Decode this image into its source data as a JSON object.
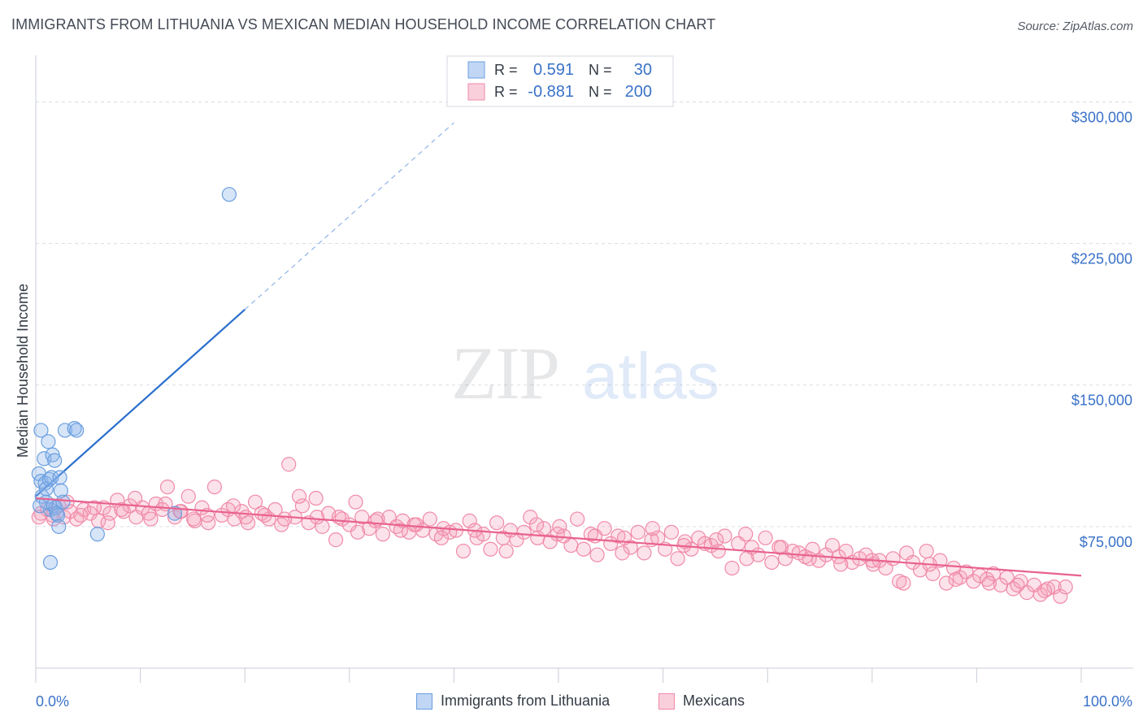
{
  "title": "IMMIGRANTS FROM LITHUANIA VS MEXICAN MEDIAN HOUSEHOLD INCOME CORRELATION CHART",
  "source": "Source: ZipAtlas.com",
  "watermark": {
    "zip": "ZIP",
    "atlas": "atlas"
  },
  "colors": {
    "blue": "#6a9fe0",
    "blue_fill": "rgba(140,180,235,0.35)",
    "blue_line": "#2a6fcc",
    "pink": "#f08aa8",
    "pink_fill": "rgba(245,160,185,0.30)",
    "pink_line": "#e8628f",
    "axis_label": "#3a72c8",
    "grid": "#d8dde5"
  },
  "legend_top": {
    "rows": [
      {
        "r_label": "R =",
        "r_value": "0.591",
        "n_label": "N =",
        "n_value": "30",
        "color": "blue"
      },
      {
        "r_label": "R =",
        "r_value": "-0.881",
        "n_label": "N =",
        "n_value": "200",
        "color": "pink"
      }
    ]
  },
  "legend_bottom": [
    {
      "label": "Immigrants from Lithuania",
      "color": "blue"
    },
    {
      "label": "Mexicans",
      "color": "pink"
    }
  ],
  "chart_data": {
    "type": "scatter",
    "xlabel": "",
    "ylabel": "Median Household Income",
    "xlim": [
      0,
      100
    ],
    "ylim": [
      0,
      320000
    ],
    "x_tick_labels": [
      "0.0%",
      "100.0%"
    ],
    "y_ticks": [
      {
        "value": 300000,
        "label": "$300,000"
      },
      {
        "value": 225000,
        "label": "$225,000"
      },
      {
        "value": 150000,
        "label": "$150,000"
      },
      {
        "value": 75000,
        "label": "$75,000"
      }
    ],
    "grid": true,
    "legend_position": "top-center",
    "series": [
      {
        "name": "Immigrants from Lithuania",
        "color": "blue",
        "points": [
          [
            0.3,
            103000
          ],
          [
            0.5,
            99000
          ],
          [
            0.6,
            91000
          ],
          [
            0.5,
            126000
          ],
          [
            0.8,
            111000
          ],
          [
            0.9,
            98000
          ],
          [
            1.0,
            95000
          ],
          [
            1.2,
            120000
          ],
          [
            1.3,
            100000
          ],
          [
            1.4,
            84000
          ],
          [
            1.5,
            101000
          ],
          [
            1.6,
            113000
          ],
          [
            1.7,
            86000
          ],
          [
            1.8,
            110000
          ],
          [
            1.9,
            85000
          ],
          [
            2.0,
            82000
          ],
          [
            2.1,
            81000
          ],
          [
            2.2,
            75000
          ],
          [
            2.3,
            101000
          ],
          [
            2.4,
            94000
          ],
          [
            2.8,
            126000
          ],
          [
            3.7,
            127000
          ],
          [
            3.9,
            126000
          ],
          [
            1.4,
            56000
          ],
          [
            5.9,
            71000
          ],
          [
            13.3,
            82000
          ],
          [
            18.5,
            251000
          ],
          [
            1.0,
            88000
          ],
          [
            2.6,
            88000
          ],
          [
            0.4,
            86000
          ]
        ],
        "trendline": {
          "x": [
            0,
            20
          ],
          "y": [
            91000,
            190000
          ],
          "dashed_to": [
            40,
            289000
          ]
        }
      },
      {
        "name": "Mexicans",
        "color": "pink",
        "points": [
          [
            0.5,
            82000
          ],
          [
            1.1,
            84000
          ],
          [
            1.6,
            81000
          ],
          [
            2.2,
            86000
          ],
          [
            2.7,
            80000
          ],
          [
            3.3,
            83000
          ],
          [
            3.9,
            79000
          ],
          [
            4.6,
            84000
          ],
          [
            5.2,
            82000
          ],
          [
            6.0,
            78000
          ],
          [
            6.5,
            85000
          ],
          [
            7.1,
            82000
          ],
          [
            7.8,
            89000
          ],
          [
            8.4,
            83000
          ],
          [
            9.0,
            86000
          ],
          [
            9.6,
            80000
          ],
          [
            10.2,
            85000
          ],
          [
            10.8,
            82000
          ],
          [
            11.5,
            87000
          ],
          [
            12.1,
            84000
          ],
          [
            12.6,
            96000
          ],
          [
            13.3,
            80000
          ],
          [
            13.9,
            83000
          ],
          [
            14.6,
            91000
          ],
          [
            15.2,
            78000
          ],
          [
            15.9,
            85000
          ],
          [
            16.5,
            77000
          ],
          [
            17.1,
            96000
          ],
          [
            17.8,
            81000
          ],
          [
            18.4,
            84000
          ],
          [
            19.0,
            79000
          ],
          [
            19.7,
            83000
          ],
          [
            20.3,
            77000
          ],
          [
            21.0,
            88000
          ],
          [
            21.6,
            82000
          ],
          [
            22.3,
            79000
          ],
          [
            22.9,
            84000
          ],
          [
            23.5,
            76000
          ],
          [
            24.2,
            108000
          ],
          [
            24.8,
            80000
          ],
          [
            25.5,
            86000
          ],
          [
            26.1,
            77000
          ],
          [
            26.8,
            90000
          ],
          [
            27.4,
            75000
          ],
          [
            28.0,
            82000
          ],
          [
            28.7,
            68000
          ],
          [
            29.3,
            79000
          ],
          [
            30.0,
            76000
          ],
          [
            30.6,
            88000
          ],
          [
            31.2,
            80000
          ],
          [
            31.9,
            74000
          ],
          [
            32.5,
            78000
          ],
          [
            33.2,
            71000
          ],
          [
            33.8,
            80000
          ],
          [
            34.5,
            75000
          ],
          [
            35.1,
            78000
          ],
          [
            35.7,
            72000
          ],
          [
            36.4,
            76000
          ],
          [
            37.0,
            73000
          ],
          [
            37.7,
            79000
          ],
          [
            38.3,
            71000
          ],
          [
            39.0,
            74000
          ],
          [
            39.6,
            72000
          ],
          [
            40.2,
            73000
          ],
          [
            40.9,
            62000
          ],
          [
            41.5,
            78000
          ],
          [
            42.2,
            69000
          ],
          [
            42.8,
            71000
          ],
          [
            43.5,
            63000
          ],
          [
            44.1,
            77000
          ],
          [
            44.7,
            69000
          ],
          [
            45.4,
            73000
          ],
          [
            46.0,
            68000
          ],
          [
            46.7,
            72000
          ],
          [
            47.3,
            80000
          ],
          [
            48.0,
            69000
          ],
          [
            48.6,
            74000
          ],
          [
            49.2,
            67000
          ],
          [
            49.9,
            71000
          ],
          [
            50.5,
            70000
          ],
          [
            51.2,
            65000
          ],
          [
            51.8,
            79000
          ],
          [
            52.4,
            63000
          ],
          [
            53.1,
            71000
          ],
          [
            53.7,
            60000
          ],
          [
            54.4,
            74000
          ],
          [
            55.0,
            66000
          ],
          [
            55.7,
            70000
          ],
          [
            56.3,
            69000
          ],
          [
            56.9,
            64000
          ],
          [
            57.6,
            72000
          ],
          [
            58.2,
            61000
          ],
          [
            58.9,
            68000
          ],
          [
            59.5,
            69000
          ],
          [
            60.2,
            63000
          ],
          [
            60.8,
            72000
          ],
          [
            61.4,
            58000
          ],
          [
            62.1,
            67000
          ],
          [
            62.7,
            63000
          ],
          [
            63.4,
            69000
          ],
          [
            64.0,
            66000
          ],
          [
            64.6,
            65000
          ],
          [
            65.3,
            62000
          ],
          [
            65.9,
            70000
          ],
          [
            66.6,
            53000
          ],
          [
            67.2,
            66000
          ],
          [
            67.9,
            71000
          ],
          [
            68.5,
            64000
          ],
          [
            69.1,
            60000
          ],
          [
            69.8,
            69000
          ],
          [
            70.4,
            56000
          ],
          [
            71.1,
            64000
          ],
          [
            71.7,
            58000
          ],
          [
            72.4,
            62000
          ],
          [
            73.0,
            61000
          ],
          [
            73.6,
            59000
          ],
          [
            74.3,
            63000
          ],
          [
            74.9,
            57000
          ],
          [
            75.6,
            60000
          ],
          [
            76.2,
            65000
          ],
          [
            76.8,
            59000
          ],
          [
            77.5,
            62000
          ],
          [
            78.1,
            56000
          ],
          [
            78.8,
            58000
          ],
          [
            79.4,
            60000
          ],
          [
            80.1,
            55000
          ],
          [
            80.7,
            57000
          ],
          [
            81.3,
            53000
          ],
          [
            82.0,
            58000
          ],
          [
            82.6,
            46000
          ],
          [
            83.3,
            61000
          ],
          [
            83.9,
            56000
          ],
          [
            84.6,
            52000
          ],
          [
            85.2,
            62000
          ],
          [
            85.8,
            50000
          ],
          [
            86.5,
            57000
          ],
          [
            87.1,
            45000
          ],
          [
            87.8,
            53000
          ],
          [
            88.4,
            48000
          ],
          [
            89.0,
            51000
          ],
          [
            89.7,
            46000
          ],
          [
            90.3,
            49000
          ],
          [
            91.0,
            47000
          ],
          [
            91.6,
            50000
          ],
          [
            92.3,
            44000
          ],
          [
            92.9,
            48000
          ],
          [
            93.5,
            42000
          ],
          [
            94.2,
            46000
          ],
          [
            94.8,
            40000
          ],
          [
            95.5,
            44000
          ],
          [
            96.1,
            39000
          ],
          [
            96.8,
            42000
          ],
          [
            97.4,
            43000
          ],
          [
            98.0,
            38000
          ],
          [
            0.3,
            80000
          ],
          [
            1.7,
            79000
          ],
          [
            3.0,
            88000
          ],
          [
            4.3,
            81000
          ],
          [
            5.6,
            85000
          ],
          [
            6.9,
            77000
          ],
          [
            8.2,
            84000
          ],
          [
            9.5,
            90000
          ],
          [
            11.0,
            79000
          ],
          [
            12.4,
            87000
          ],
          [
            13.8,
            83000
          ],
          [
            15.1,
            79000
          ],
          [
            16.4,
            81000
          ],
          [
            18.9,
            86000
          ],
          [
            20.1,
            80000
          ],
          [
            21.9,
            81000
          ],
          [
            23.8,
            79000
          ],
          [
            25.2,
            91000
          ],
          [
            26.9,
            80000
          ],
          [
            29.0,
            80000
          ],
          [
            30.8,
            72000
          ],
          [
            32.7,
            79000
          ],
          [
            34.9,
            73000
          ],
          [
            36.2,
            76000
          ],
          [
            38.8,
            69000
          ],
          [
            42.0,
            73000
          ],
          [
            45.0,
            62000
          ],
          [
            47.9,
            76000
          ],
          [
            50.1,
            75000
          ],
          [
            53.5,
            70000
          ],
          [
            56.1,
            61000
          ],
          [
            59.0,
            74000
          ],
          [
            62.0,
            65000
          ],
          [
            65.1,
            68000
          ],
          [
            68.0,
            58000
          ],
          [
            71.3,
            64000
          ],
          [
            74.0,
            58000
          ],
          [
            77.0,
            55000
          ],
          [
            80.0,
            57000
          ],
          [
            83.0,
            45000
          ],
          [
            85.5,
            55000
          ],
          [
            88.0,
            47000
          ],
          [
            91.2,
            45000
          ],
          [
            93.9,
            44000
          ],
          [
            96.5,
            41000
          ],
          [
            98.5,
            43000
          ]
        ],
        "trendline": {
          "x": [
            0,
            100
          ],
          "y": [
            90000,
            49000
          ]
        }
      }
    ]
  }
}
